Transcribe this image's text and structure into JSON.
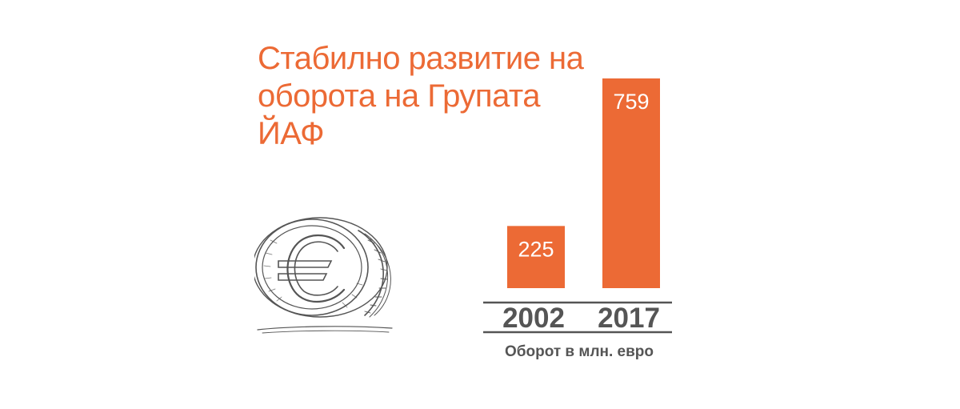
{
  "title_lines": [
    "Стабилно развитие на",
    "оборота на Групата",
    "ЙАФ"
  ],
  "colors": {
    "accent": "#ec6a35",
    "text": "#555555",
    "rule": "#555555"
  },
  "icon": "euro-coin-icon",
  "chart_data": {
    "type": "bar",
    "title": "Стабилно развитие на оборота на Групата ЙАФ",
    "categories": [
      "2002",
      "2017"
    ],
    "values": [
      225,
      759
    ],
    "xlabel": "Оборот в млн. евро",
    "ylabel": "",
    "ylim": [
      0,
      759
    ],
    "grid": false,
    "data_labels": [
      "225",
      "759"
    ]
  }
}
